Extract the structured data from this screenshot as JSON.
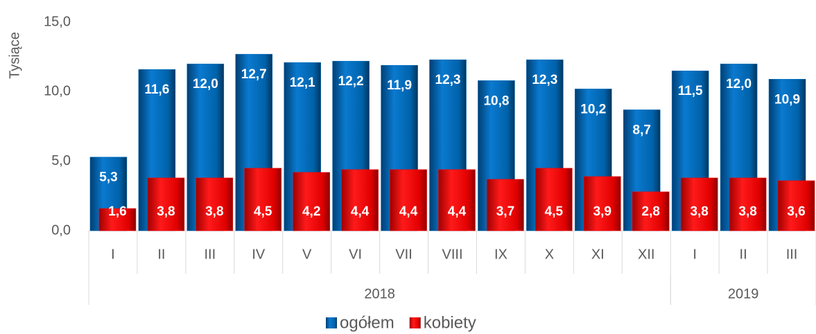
{
  "chart_data": {
    "type": "bar",
    "y_label": "Tysiące",
    "categories": [
      "I",
      "II",
      "III",
      "IV",
      "V",
      "VI",
      "VII",
      "VIII",
      "IX",
      "X",
      "XI",
      "XII",
      "I",
      "II",
      "III"
    ],
    "groups": [
      {
        "label": "2018",
        "count": 12
      },
      {
        "label": "2019",
        "count": 3
      }
    ],
    "series": [
      {
        "name": "ogółem",
        "color": "#0070c0",
        "values": [
          5.3,
          11.6,
          12.0,
          12.7,
          12.1,
          12.2,
          11.9,
          12.3,
          10.8,
          12.3,
          10.2,
          8.7,
          11.5,
          12.0,
          10.9
        ],
        "value_labels": [
          "5,3",
          "11,6",
          "12,0",
          "12,7",
          "12,1",
          "12,2",
          "11,9",
          "12,3",
          "10,8",
          "12,3",
          "10,2",
          "8,7",
          "11,5",
          "12,0",
          "10,9"
        ]
      },
      {
        "name": "kobiety",
        "color": "#ff0000",
        "values": [
          1.6,
          3.8,
          3.8,
          4.5,
          4.2,
          4.4,
          4.4,
          4.4,
          3.7,
          4.5,
          3.9,
          2.8,
          3.8,
          3.8,
          3.6
        ],
        "value_labels": [
          "1,6",
          "3,8",
          "3,8",
          "4,5",
          "4,2",
          "4,4",
          "4,4",
          "4,4",
          "3,7",
          "4,5",
          "3,9",
          "2,8",
          "3,8",
          "3,8",
          "3,6"
        ]
      }
    ],
    "ylim": [
      0,
      15
    ],
    "yticks": [
      {
        "value": 0,
        "label": "0,0"
      },
      {
        "value": 5,
        "label": "5,0"
      },
      {
        "value": 10,
        "label": "10,0"
      },
      {
        "value": 15,
        "label": "15,0"
      }
    ],
    "legend": "bottom"
  }
}
